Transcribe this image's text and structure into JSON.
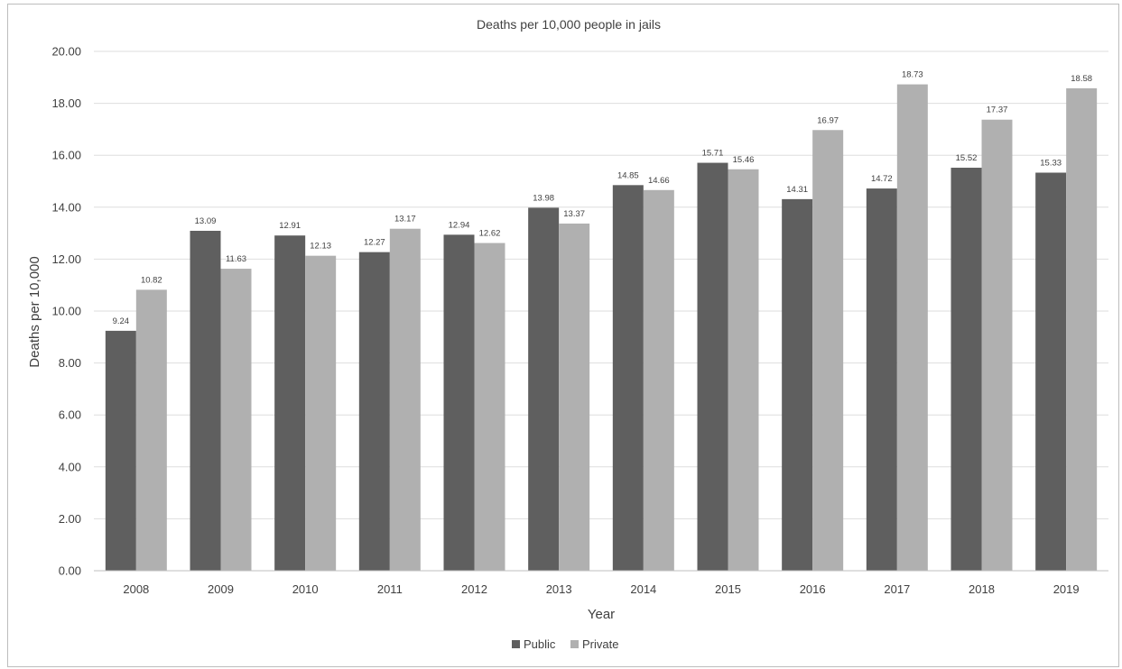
{
  "chart_data": {
    "type": "bar",
    "title": "Deaths per 10,000 people in jails",
    "xlabel": "Year",
    "ylabel": "Deaths per 10,000",
    "ylim": [
      0,
      20
    ],
    "ytick_labels": [
      "0.00",
      "2.00",
      "4.00",
      "6.00",
      "8.00",
      "10.00",
      "12.00",
      "14.00",
      "16.00",
      "18.00",
      "20.00"
    ],
    "categories": [
      "2008",
      "2009",
      "2010",
      "2011",
      "2012",
      "2013",
      "2014",
      "2015",
      "2016",
      "2017",
      "2018",
      "2019"
    ],
    "series": [
      {
        "name": "Public",
        "color": "#5f5f5f",
        "values": [
          9.24,
          13.09,
          12.91,
          12.27,
          12.94,
          13.98,
          14.85,
          15.71,
          14.31,
          14.72,
          15.52,
          15.33
        ],
        "labels": [
          "9.24",
          "13.09",
          "12.91",
          "12.27",
          "12.94",
          "13.98",
          "14.85",
          "15.71",
          "14.31",
          "14.72",
          "15.52",
          "15.33"
        ]
      },
      {
        "name": "Private",
        "color": "#b0b0b0",
        "values": [
          10.82,
          11.63,
          12.13,
          13.17,
          12.62,
          13.37,
          14.66,
          15.46,
          16.97,
          18.73,
          17.37,
          18.58
        ],
        "labels": [
          "10.82",
          "11.63",
          "12.13",
          "13.17",
          "12.62",
          "13.37",
          "14.66",
          "15.46",
          "16.97",
          "18.73",
          "17.37",
          "18.58"
        ]
      }
    ],
    "grid": true,
    "legend_position": "bottom-center"
  }
}
